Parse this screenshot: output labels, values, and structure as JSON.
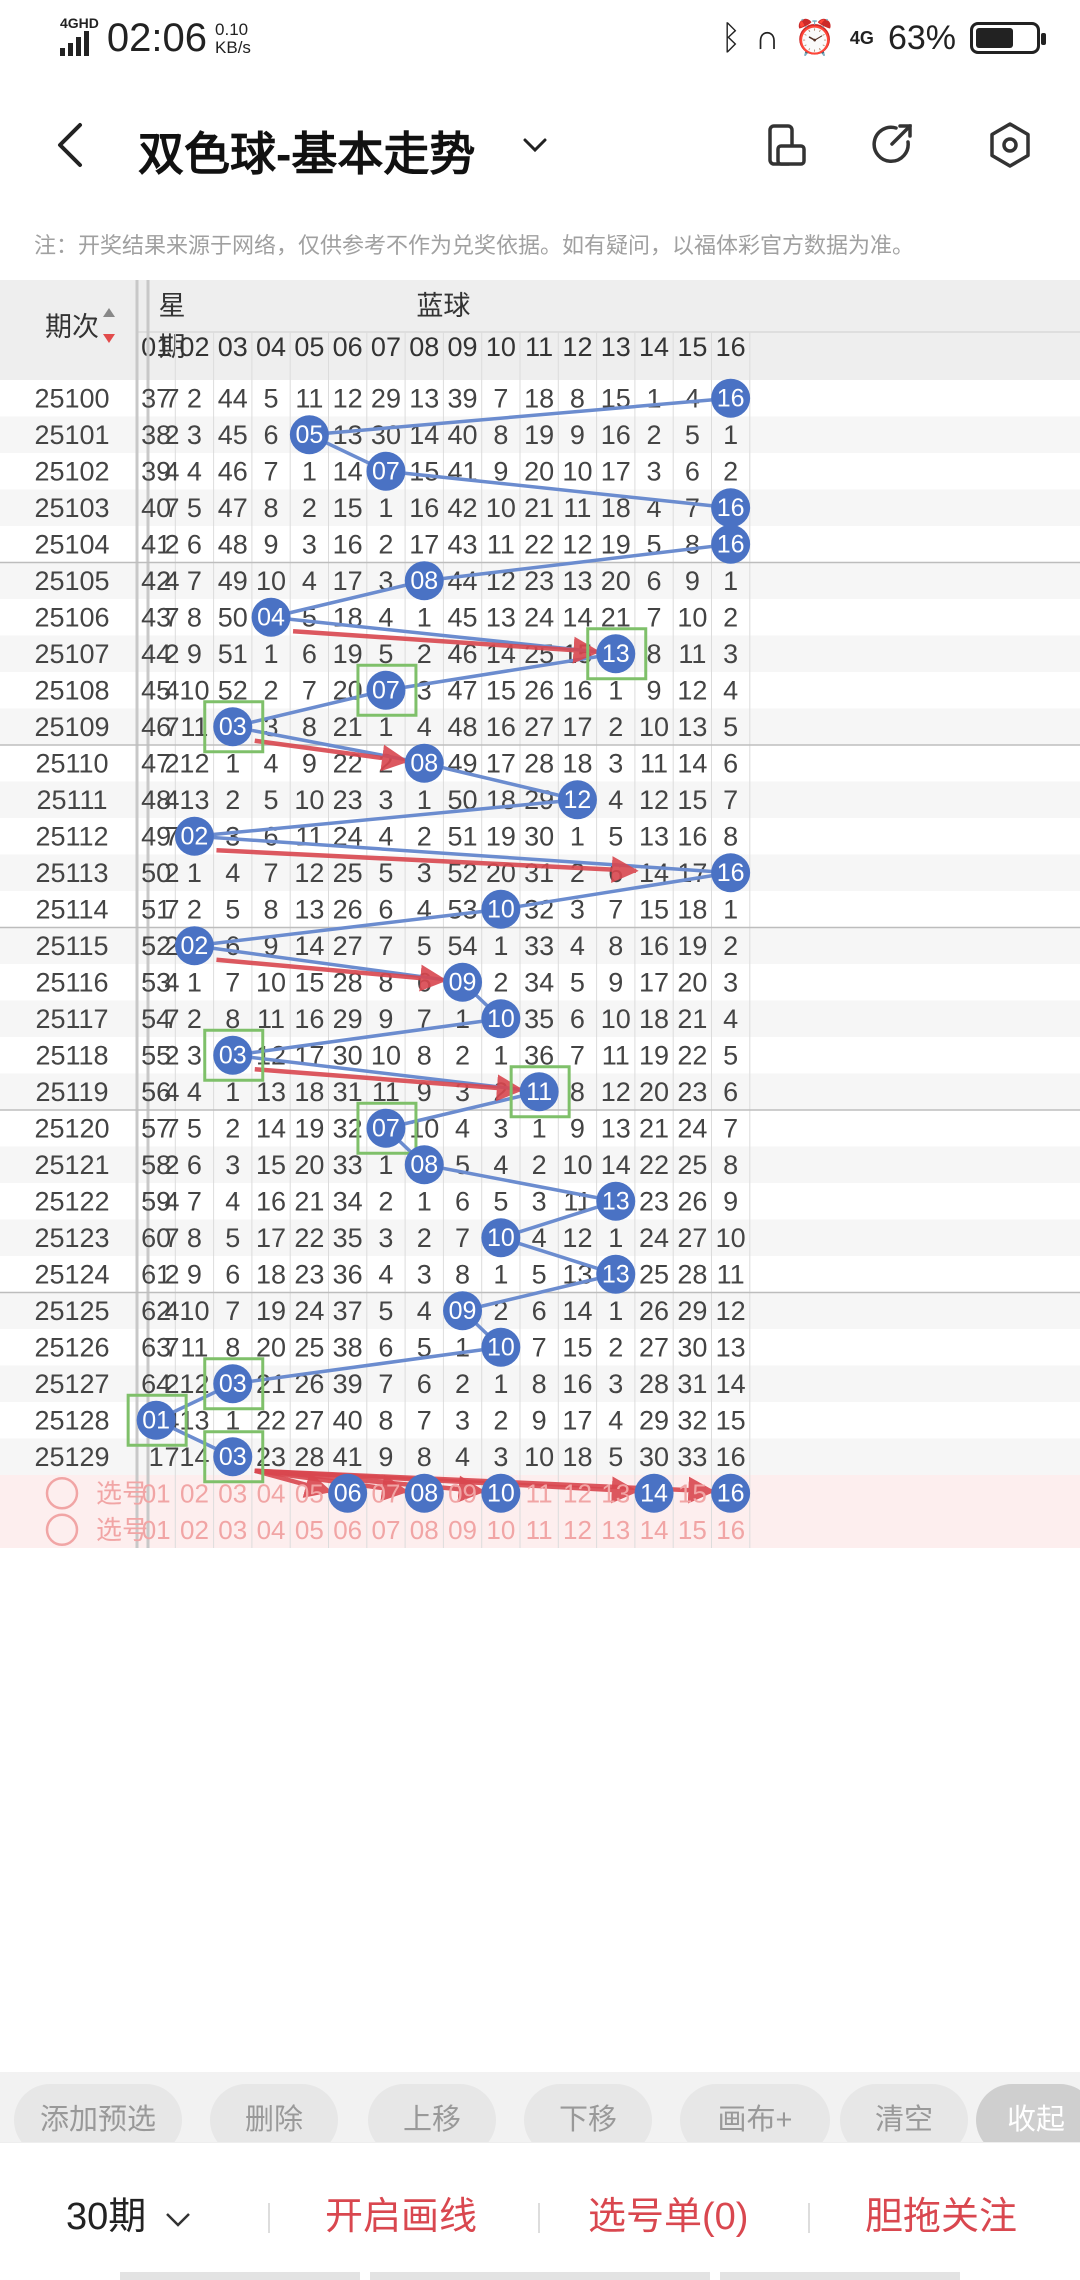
{
  "status": {
    "network": "4GHD",
    "time": "02:06",
    "speed_value": "0.10",
    "speed_unit": "KB/s",
    "net_right": "4G",
    "battery": "63%",
    "battery_level": 0.63
  },
  "appbar": {
    "title": "双色球-基本走势",
    "icons": [
      "back-arrow-icon",
      "chevron-down-icon",
      "phone-rotate-icon",
      "share-icon",
      "settings-hexagon-icon"
    ]
  },
  "notice": "注：开奖结果来源于网络，仅供参考不作为兑奖依据。如有疑问，以福体彩官方数据为准。",
  "table": {
    "h_issue": "期次",
    "h_week_1": "星",
    "h_week_2": "期",
    "h_blue": "蓝球",
    "columns": [
      "01",
      "02",
      "03",
      "04",
      "05",
      "06",
      "07",
      "08",
      "09",
      "10",
      "11",
      "12",
      "13",
      "14",
      "15",
      "16"
    ],
    "rows": [
      {
        "issue": "25100",
        "week": "7",
        "blue": 16,
        "vals": [
          37,
          2,
          44,
          5,
          11,
          12,
          29,
          13,
          39,
          7,
          18,
          8,
          15,
          1,
          4,
          16
        ]
      },
      {
        "issue": "25101",
        "week": "2",
        "blue": 5,
        "vals": [
          38,
          3,
          45,
          6,
          5,
          13,
          30,
          14,
          40,
          8,
          19,
          9,
          16,
          2,
          5,
          1
        ]
      },
      {
        "issue": "25102",
        "week": "4",
        "blue": 7,
        "vals": [
          39,
          4,
          46,
          7,
          1,
          14,
          7,
          15,
          41,
          9,
          20,
          10,
          17,
          3,
          6,
          2
        ]
      },
      {
        "issue": "25103",
        "week": "7",
        "blue": 16,
        "vals": [
          40,
          5,
          47,
          8,
          2,
          15,
          1,
          16,
          42,
          10,
          21,
          11,
          18,
          4,
          7,
          16
        ]
      },
      {
        "issue": "25104",
        "week": "2",
        "blue": 16,
        "vals": [
          41,
          6,
          48,
          9,
          3,
          16,
          2,
          17,
          43,
          11,
          22,
          12,
          19,
          5,
          8,
          16
        ]
      },
      {
        "issue": "25105",
        "week": "4",
        "blue": 8,
        "vals": [
          42,
          7,
          49,
          10,
          4,
          17,
          3,
          8,
          44,
          12,
          23,
          13,
          20,
          6,
          9,
          1
        ]
      },
      {
        "issue": "25106",
        "week": "7",
        "blue": 4,
        "vals": [
          43,
          8,
          50,
          4,
          5,
          18,
          4,
          1,
          45,
          13,
          24,
          14,
          21,
          7,
          10,
          2
        ]
      },
      {
        "issue": "25107",
        "week": "2",
        "blue": 13,
        "vals": [
          44,
          9,
          51,
          1,
          6,
          19,
          5,
          2,
          46,
          14,
          25,
          15,
          13,
          8,
          11,
          3
        ]
      },
      {
        "issue": "25108",
        "week": "4",
        "blue": 7,
        "vals": [
          45,
          10,
          52,
          2,
          7,
          20,
          7,
          3,
          47,
          15,
          26,
          16,
          1,
          9,
          12,
          4
        ]
      },
      {
        "issue": "25109",
        "week": "7",
        "blue": 3,
        "vals": [
          46,
          11,
          3,
          3,
          8,
          21,
          1,
          4,
          48,
          16,
          27,
          17,
          2,
          10,
          13,
          5
        ]
      },
      {
        "issue": "25110",
        "week": "2",
        "blue": 8,
        "vals": [
          47,
          12,
          1,
          4,
          9,
          22,
          2,
          8,
          49,
          17,
          28,
          18,
          3,
          11,
          14,
          6
        ]
      },
      {
        "issue": "25111",
        "week": "4",
        "blue": 12,
        "vals": [
          48,
          13,
          2,
          5,
          10,
          23,
          3,
          1,
          50,
          18,
          29,
          12,
          4,
          12,
          15,
          7
        ]
      },
      {
        "issue": "25112",
        "week": "7",
        "blue": 2,
        "vals": [
          49,
          2,
          3,
          6,
          11,
          24,
          4,
          2,
          51,
          19,
          30,
          1,
          5,
          13,
          16,
          8
        ]
      },
      {
        "issue": "25113",
        "week": "2",
        "blue": 16,
        "vals": [
          50,
          1,
          4,
          7,
          12,
          25,
          5,
          3,
          52,
          20,
          31,
          2,
          6,
          14,
          17,
          16
        ]
      },
      {
        "issue": "25114",
        "week": "7",
        "blue": 10,
        "vals": [
          51,
          2,
          5,
          8,
          13,
          26,
          6,
          4,
          53,
          10,
          32,
          3,
          7,
          15,
          18,
          1
        ]
      },
      {
        "issue": "25115",
        "week": "2",
        "blue": 2,
        "vals": [
          52,
          2,
          6,
          9,
          14,
          27,
          7,
          5,
          54,
          1,
          33,
          4,
          8,
          16,
          19,
          2
        ]
      },
      {
        "issue": "25116",
        "week": "4",
        "blue": 9,
        "vals": [
          53,
          1,
          7,
          10,
          15,
          28,
          8,
          6,
          9,
          2,
          34,
          5,
          9,
          17,
          20,
          3
        ]
      },
      {
        "issue": "25117",
        "week": "7",
        "blue": 10,
        "vals": [
          54,
          2,
          8,
          11,
          16,
          29,
          9,
          7,
          1,
          10,
          35,
          6,
          10,
          18,
          21,
          4
        ]
      },
      {
        "issue": "25118",
        "week": "2",
        "blue": 3,
        "vals": [
          55,
          3,
          3,
          12,
          17,
          30,
          10,
          8,
          2,
          1,
          36,
          7,
          11,
          19,
          22,
          5
        ]
      },
      {
        "issue": "25119",
        "week": "4",
        "blue": 11,
        "vals": [
          56,
          4,
          1,
          13,
          18,
          31,
          11,
          9,
          3,
          2,
          11,
          8,
          12,
          20,
          23,
          6
        ]
      },
      {
        "issue": "25120",
        "week": "7",
        "blue": 7,
        "vals": [
          57,
          5,
          2,
          14,
          19,
          32,
          7,
          10,
          4,
          3,
          1,
          9,
          13,
          21,
          24,
          7
        ]
      },
      {
        "issue": "25121",
        "week": "2",
        "blue": 8,
        "vals": [
          58,
          6,
          3,
          15,
          20,
          33,
          1,
          8,
          5,
          4,
          2,
          10,
          14,
          22,
          25,
          8
        ]
      },
      {
        "issue": "25122",
        "week": "4",
        "blue": 13,
        "vals": [
          59,
          7,
          4,
          16,
          21,
          34,
          2,
          1,
          6,
          5,
          3,
          11,
          13,
          23,
          26,
          9
        ]
      },
      {
        "issue": "25123",
        "week": "7",
        "blue": 10,
        "vals": [
          60,
          8,
          5,
          17,
          22,
          35,
          3,
          2,
          7,
          10,
          4,
          12,
          1,
          24,
          27,
          10
        ]
      },
      {
        "issue": "25124",
        "week": "2",
        "blue": 13,
        "vals": [
          61,
          9,
          6,
          18,
          23,
          36,
          4,
          3,
          8,
          1,
          5,
          13,
          13,
          25,
          28,
          11
        ]
      },
      {
        "issue": "25125",
        "week": "4",
        "blue": 9,
        "vals": [
          62,
          10,
          7,
          19,
          24,
          37,
          5,
          4,
          9,
          2,
          6,
          14,
          1,
          26,
          29,
          12
        ]
      },
      {
        "issue": "25126",
        "week": "7",
        "blue": 10,
        "vals": [
          63,
          11,
          8,
          20,
          25,
          38,
          6,
          5,
          1,
          10,
          7,
          15,
          2,
          27,
          30,
          13
        ]
      },
      {
        "issue": "25127",
        "week": "2",
        "blue": 3,
        "vals": [
          64,
          12,
          3,
          21,
          26,
          39,
          7,
          6,
          2,
          1,
          8,
          16,
          3,
          28,
          31,
          14
        ]
      },
      {
        "issue": "25128",
        "week": "4",
        "blue": 1,
        "vals": [
          1,
          13,
          1,
          22,
          27,
          40,
          8,
          7,
          3,
          2,
          9,
          17,
          4,
          29,
          32,
          15
        ]
      },
      {
        "issue": "25129",
        "week": "7",
        "blue": 3,
        "vals": [
          1,
          14,
          3,
          23,
          28,
          41,
          9,
          8,
          4,
          3,
          10,
          18,
          5,
          30,
          33,
          16
        ]
      }
    ],
    "select_label": "选号",
    "select_rows": [
      {
        "label": "选号",
        "picked": [
          6,
          8,
          10,
          14,
          16
        ]
      },
      {
        "label": "选号",
        "picked": []
      }
    ],
    "green_boxes": [
      {
        "issue": "25107",
        "col": 13
      },
      {
        "issue": "25108",
        "col": 7
      },
      {
        "issue": "25109",
        "col": 3
      },
      {
        "issue": "25118",
        "col": 3
      },
      {
        "issue": "25119",
        "col": 11
      },
      {
        "issue": "25120",
        "col": 7
      },
      {
        "issue": "25127",
        "col": 3
      },
      {
        "issue": "25128",
        "col": 1
      },
      {
        "issue": "25129",
        "col": 3
      }
    ],
    "red_arrows": [
      {
        "from": {
          "issue": "25106",
          "col": 4
        },
        "to": {
          "issue": "25107",
          "col": 13
        }
      },
      {
        "from": {
          "issue": "25109",
          "col": 3
        },
        "to": {
          "issue": "25110",
          "col": 8
        }
      },
      {
        "from": {
          "issue": "25112",
          "col": 2
        },
        "to": {
          "issue": "25113",
          "col": 14
        }
      },
      {
        "from": {
          "issue": "25115",
          "col": 2
        },
        "to": {
          "issue": "25116",
          "col": 9
        }
      },
      {
        "from": {
          "issue": "25118",
          "col": 3
        },
        "to": {
          "issue": "25119",
          "col": 11
        }
      },
      {
        "from": {
          "issue": "25129",
          "col": 3
        },
        "to": {
          "issue": "select",
          "col": 6
        }
      },
      {
        "from": {
          "issue": "25129",
          "col": 3
        },
        "to": {
          "issue": "select",
          "col": 8
        }
      },
      {
        "from": {
          "issue": "25129",
          "col": 3
        },
        "to": {
          "issue": "select",
          "col": 10
        }
      },
      {
        "from": {
          "issue": "25129",
          "col": 3
        },
        "to": {
          "issue": "select",
          "col": 14
        }
      },
      {
        "from": {
          "issue": "25129",
          "col": 3
        },
        "to": {
          "issue": "select",
          "col": 16
        }
      }
    ],
    "colors": {
      "ball": "#4a72c4",
      "trend_line": "#6b8ccf",
      "arrow": "#d9474f",
      "box": "#7fc06a",
      "select_bg": "#fdeeee",
      "select_text": "#f1a5a5",
      "header_bg": "#eeeeee"
    }
  },
  "toolbar": {
    "buttons": [
      "添加预选",
      "删除",
      "上移",
      "下移",
      "画布+",
      "清空",
      "收起"
    ]
  },
  "bottombar": {
    "period": "30期",
    "draw": "开启画线",
    "list": "选号单(0)",
    "focus": "胆拖关注"
  }
}
